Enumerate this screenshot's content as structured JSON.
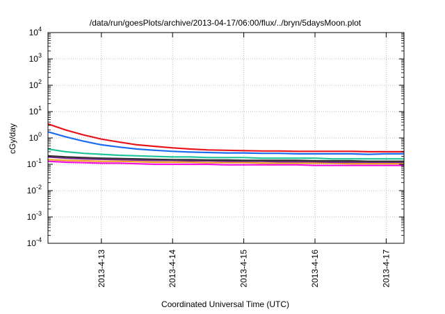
{
  "chart_data": {
    "type": "line",
    "title": "/data/run/goesPlots/archive/2013-04-17/06:00/flux/../bryn/5daysMoon.plot",
    "xlabel": "Coordinated Universal Time (UTC)",
    "ylabel": "cGy/day",
    "yscale": "log",
    "ylim": [
      0.0001,
      10000
    ],
    "xlim": [
      "2013-04-12T06:00",
      "2013-04-17T06:00"
    ],
    "grid": true,
    "x_ticks": [
      "2013-4-13",
      "2013-4-14",
      "2013-4-15",
      "2013-4-16",
      "2013-4-17"
    ],
    "y_ticks": [
      {
        "value": 0.0001,
        "base": "10",
        "exp": "-4"
      },
      {
        "value": 0.001,
        "base": "10",
        "exp": "-3"
      },
      {
        "value": 0.01,
        "base": "10",
        "exp": "-2"
      },
      {
        "value": 0.1,
        "base": "10",
        "exp": "-1"
      },
      {
        "value": 1,
        "base": "10",
        "exp": "0"
      },
      {
        "value": 10,
        "base": "10",
        "exp": "1"
      },
      {
        "value": 100,
        "base": "10",
        "exp": "2"
      },
      {
        "value": 1000,
        "base": "10",
        "exp": "3"
      },
      {
        "value": 10000,
        "base": "10",
        "exp": "4"
      }
    ],
    "x": [
      "2013-04-12T06:00",
      "2013-04-12T12:00",
      "2013-04-12T18:00",
      "2013-04-13T00:00",
      "2013-04-13T06:00",
      "2013-04-13T12:00",
      "2013-04-13T18:00",
      "2013-04-14T00:00",
      "2013-04-14T06:00",
      "2013-04-14T12:00",
      "2013-04-14T18:00",
      "2013-04-15T00:00",
      "2013-04-15T06:00",
      "2013-04-15T12:00",
      "2013-04-15T18:00",
      "2013-04-16T00:00",
      "2013-04-16T06:00",
      "2013-04-16T12:00",
      "2013-04-16T18:00",
      "2013-04-17T00:00",
      "2013-04-17T06:00"
    ],
    "series": [
      {
        "color": "#e8141c",
        "values": [
          3.4,
          2.0,
          1.3,
          0.9,
          0.7,
          0.55,
          0.48,
          0.42,
          0.38,
          0.35,
          0.34,
          0.33,
          0.32,
          0.32,
          0.31,
          0.31,
          0.31,
          0.31,
          0.3,
          0.3,
          0.3
        ]
      },
      {
        "color": "#1a6cf0",
        "values": [
          1.7,
          1.1,
          0.75,
          0.55,
          0.45,
          0.38,
          0.34,
          0.31,
          0.29,
          0.28,
          0.27,
          0.27,
          0.26,
          0.26,
          0.25,
          0.25,
          0.25,
          0.25,
          0.24,
          0.25,
          0.25
        ]
      },
      {
        "color": "#1fc49c",
        "values": [
          0.38,
          0.3,
          0.26,
          0.24,
          0.22,
          0.21,
          0.2,
          0.19,
          0.19,
          0.18,
          0.18,
          0.18,
          0.17,
          0.17,
          0.17,
          0.17,
          0.16,
          0.16,
          0.16,
          0.16,
          0.16
        ]
      },
      {
        "color": "#333333",
        "values": [
          0.21,
          0.19,
          0.18,
          0.17,
          0.165,
          0.16,
          0.155,
          0.15,
          0.15,
          0.145,
          0.145,
          0.14,
          0.14,
          0.14,
          0.14,
          0.135,
          0.135,
          0.135,
          0.13,
          0.13,
          0.13
        ]
      },
      {
        "color": "#7a2590",
        "values": [
          0.19,
          0.17,
          0.16,
          0.155,
          0.15,
          0.145,
          0.14,
          0.14,
          0.135,
          0.135,
          0.13,
          0.13,
          0.13,
          0.125,
          0.125,
          0.125,
          0.12,
          0.12,
          0.12,
          0.12,
          0.12
        ]
      },
      {
        "color": "#f0a020",
        "values": [
          0.15,
          0.14,
          0.135,
          0.13,
          0.13,
          0.125,
          0.12,
          0.12,
          0.12,
          0.115,
          0.115,
          0.115,
          0.11,
          0.11,
          0.11,
          0.11,
          0.11,
          0.105,
          0.105,
          0.105,
          0.105
        ]
      },
      {
        "color": "#f010e0",
        "values": [
          0.13,
          0.12,
          0.115,
          0.11,
          0.11,
          0.105,
          0.1,
          0.1,
          0.1,
          0.1,
          0.095,
          0.095,
          0.095,
          0.095,
          0.095,
          0.09,
          0.09,
          0.09,
          0.09,
          0.09,
          0.09
        ]
      }
    ]
  }
}
